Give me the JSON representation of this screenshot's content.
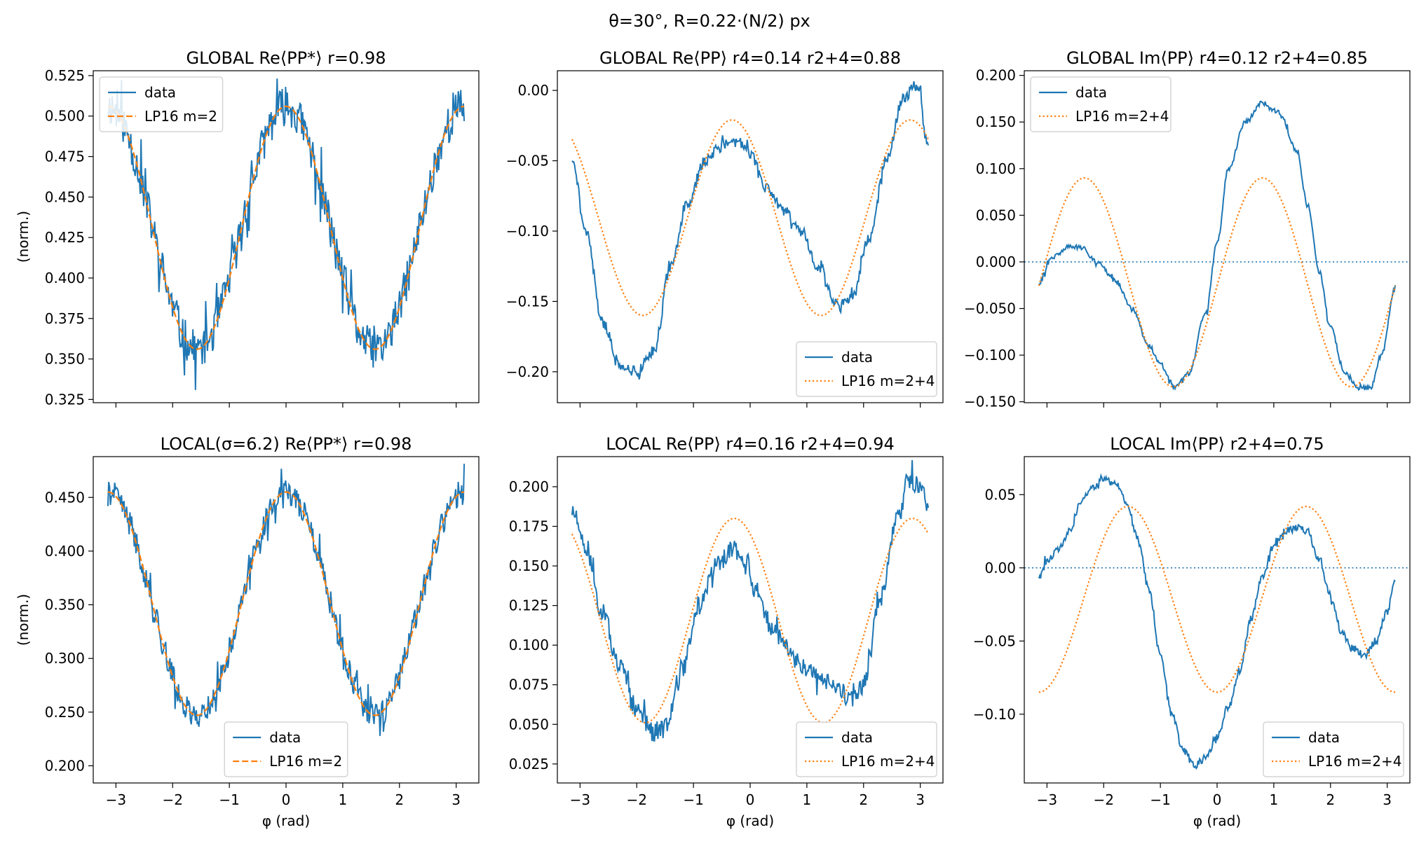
{
  "figure": {
    "suptitle": "θ=30°,  R=0.22·(N/2) px",
    "colors": {
      "data": "#1f77b4",
      "fit": "#ff7f0e"
    }
  },
  "chart_data": [
    {
      "id": "p00",
      "type": "line",
      "title": "GLOBAL Re⟨PP*⟩  r=0.98",
      "xlabel": "",
      "ylabel": "(norm.)",
      "xlim": [
        -3.4,
        3.4
      ],
      "ylim": [
        0.323,
        0.528
      ],
      "xticks": [],
      "yticks": [
        0.325,
        0.35,
        0.375,
        0.4,
        0.425,
        0.45,
        0.475,
        0.5,
        0.525
      ],
      "legend": {
        "position": "upper-left",
        "entries": [
          "data",
          "LP16 m=2"
        ]
      },
      "series": [
        {
          "name": "data",
          "kind": "data",
          "model": "cos2",
          "params": {
            "c": 0.431,
            "a2": 0.075,
            "p2": 0.0,
            "a4": 0,
            "p4": 0
          },
          "noise": 0.012,
          "seed": 11
        },
        {
          "name": "LP16 m=2",
          "kind": "fit",
          "style": "dashed",
          "model": "cos2",
          "params": {
            "c": 0.431,
            "a2": 0.075,
            "p2": 0.0,
            "a4": 0,
            "p4": 0
          }
        }
      ],
      "hline": null
    },
    {
      "id": "p01",
      "type": "line",
      "title": "GLOBAL Re⟨PP⟩  r4=0.14  r2+4=0.88",
      "xlabel": "",
      "ylabel": "",
      "xlim": [
        -3.4,
        3.4
      ],
      "ylim": [
        -0.222,
        0.014
      ],
      "xticks": [],
      "yticks": [
        -0.2,
        -0.15,
        -0.1,
        -0.05,
        0.0
      ],
      "legend": {
        "position": "lower-right",
        "entries": [
          "data",
          "LP16 m=2+4"
        ]
      },
      "series": [
        {
          "name": "data",
          "kind": "data",
          "points": [
            [
              -3.14,
              -0.048
            ],
            [
              -2.9,
              -0.1
            ],
            [
              -2.6,
              -0.165
            ],
            [
              -2.3,
              -0.195
            ],
            [
              -2.0,
              -0.2
            ],
            [
              -1.7,
              -0.185
            ],
            [
              -1.4,
              -0.125
            ],
            [
              -1.1,
              -0.08
            ],
            [
              -0.8,
              -0.05
            ],
            [
              -0.5,
              -0.04
            ],
            [
              -0.2,
              -0.036
            ],
            [
              0.0,
              -0.045
            ],
            [
              0.3,
              -0.07
            ],
            [
              0.6,
              -0.085
            ],
            [
              0.9,
              -0.1
            ],
            [
              1.2,
              -0.125
            ],
            [
              1.5,
              -0.15
            ],
            [
              1.8,
              -0.148
            ],
            [
              2.1,
              -0.105
            ],
            [
              2.4,
              -0.05
            ],
            [
              2.7,
              -0.005
            ],
            [
              2.95,
              0.004
            ],
            [
              3.14,
              -0.04
            ]
          ],
          "noise": 0.004,
          "seed": 21
        },
        {
          "name": "LP16 m=2+4",
          "kind": "fit",
          "style": "dotted",
          "model": "cos2",
          "params": {
            "c": -0.0905,
            "a2": 0.0695,
            "p2": -0.32,
            "a4": 0,
            "p4": 0
          }
        }
      ],
      "hline": null
    },
    {
      "id": "p02",
      "type": "line",
      "title": "GLOBAL Im⟨PP⟩  r4=0.12  r2+4=0.85",
      "xlabel": "",
      "ylabel": "",
      "xlim": [
        -3.4,
        3.4
      ],
      "ylim": [
        -0.151,
        0.205
      ],
      "xticks": [],
      "yticks": [
        -0.15,
        -0.1,
        -0.05,
        0.0,
        0.05,
        0.1,
        0.15,
        0.2
      ],
      "legend": {
        "position": "upper-left",
        "entries": [
          "data",
          "LP16 m=2+4"
        ]
      },
      "series": [
        {
          "name": "data",
          "kind": "data",
          "points": [
            [
              -3.14,
              -0.022
            ],
            [
              -2.9,
              0.005
            ],
            [
              -2.6,
              0.017
            ],
            [
              -2.4,
              0.015
            ],
            [
              -2.1,
              0.0
            ],
            [
              -1.8,
              -0.02
            ],
            [
              -1.5,
              -0.05
            ],
            [
              -1.2,
              -0.09
            ],
            [
              -1.0,
              -0.11
            ],
            [
              -0.75,
              -0.135
            ],
            [
              -0.5,
              -0.12
            ],
            [
              -0.2,
              -0.055
            ],
            [
              0.0,
              0.02
            ],
            [
              0.2,
              0.1
            ],
            [
              0.5,
              0.15
            ],
            [
              0.8,
              0.17
            ],
            [
              1.1,
              0.16
            ],
            [
              1.4,
              0.12
            ],
            [
              1.6,
              0.06
            ],
            [
              1.8,
              -0.01
            ],
            [
              2.0,
              -0.07
            ],
            [
              2.25,
              -0.12
            ],
            [
              2.5,
              -0.135
            ],
            [
              2.7,
              -0.135
            ],
            [
              2.9,
              -0.1
            ],
            [
              3.14,
              -0.028
            ]
          ],
          "noise": 0.0025,
          "seed": 31
        },
        {
          "name": "LP16 m=2+4",
          "kind": "fit",
          "style": "dotted",
          "model": "cos2",
          "params": {
            "c": -0.022,
            "a2": 0.112,
            "p2": -2.34,
            "a4": 0,
            "p4": 0
          }
        }
      ],
      "hline": 0.0
    },
    {
      "id": "p10",
      "type": "line",
      "title": "LOCAL(σ=6.2) Re⟨PP*⟩  r=0.98",
      "xlabel": "φ (rad)",
      "ylabel": "(norm.)",
      "xlim": [
        -3.4,
        3.4
      ],
      "ylim": [
        0.184,
        0.488
      ],
      "xticks": [
        -3,
        -2,
        -1,
        0,
        1,
        2,
        3
      ],
      "yticks": [
        0.2,
        0.25,
        0.3,
        0.35,
        0.4,
        0.45
      ],
      "legend": {
        "position": "lower-center",
        "entries": [
          "data",
          "LP16 m=2"
        ]
      },
      "series": [
        {
          "name": "data",
          "kind": "data",
          "model": "cos2",
          "params": {
            "c": 0.351,
            "a2": 0.104,
            "p2": 0.0,
            "a4": 0,
            "p4": 0
          },
          "noise": 0.012,
          "seed": 41
        },
        {
          "name": "LP16 m=2",
          "kind": "fit",
          "style": "dashed",
          "model": "cos2",
          "params": {
            "c": 0.351,
            "a2": 0.104,
            "p2": 0.0,
            "a4": 0,
            "p4": 0
          }
        }
      ],
      "hline": null
    },
    {
      "id": "p11",
      "type": "line",
      "title": "LOCAL Re⟨PP⟩  r4=0.16  r2+4=0.94",
      "xlabel": "φ (rad)",
      "ylabel": "",
      "xlim": [
        -3.4,
        3.4
      ],
      "ylim": [
        0.013,
        0.219
      ],
      "xticks": [
        -3,
        -2,
        -1,
        0,
        1,
        2,
        3
      ],
      "yticks": [
        0.025,
        0.05,
        0.075,
        0.1,
        0.125,
        0.15,
        0.175,
        0.2
      ],
      "legend": {
        "position": "lower-right",
        "entries": [
          "data",
          "LP16 m=2+4"
        ]
      },
      "series": [
        {
          "name": "data",
          "kind": "data",
          "points": [
            [
              -3.14,
              0.185
            ],
            [
              -2.9,
              0.16
            ],
            [
              -2.6,
              0.12
            ],
            [
              -2.3,
              0.085
            ],
            [
              -2.0,
              0.06
            ],
            [
              -1.7,
              0.045
            ],
            [
              -1.5,
              0.05
            ],
            [
              -1.2,
              0.085
            ],
            [
              -0.9,
              0.125
            ],
            [
              -0.6,
              0.15
            ],
            [
              -0.3,
              0.16
            ],
            [
              -0.1,
              0.155
            ],
            [
              0.1,
              0.135
            ],
            [
              0.4,
              0.11
            ],
            [
              0.7,
              0.095
            ],
            [
              1.0,
              0.085
            ],
            [
              1.3,
              0.078
            ],
            [
              1.6,
              0.07
            ],
            [
              1.8,
              0.065
            ],
            [
              2.0,
              0.075
            ],
            [
              2.3,
              0.13
            ],
            [
              2.6,
              0.18
            ],
            [
              2.8,
              0.205
            ],
            [
              3.0,
              0.2
            ],
            [
              3.14,
              0.19
            ]
          ],
          "noise": 0.006,
          "seed": 51
        },
        {
          "name": "LP16 m=2+4",
          "kind": "fit",
          "style": "dotted",
          "model": "cos2",
          "params": {
            "c": 0.1155,
            "a2": 0.0645,
            "p2": -0.28,
            "a4": 0,
            "p4": 0
          }
        }
      ],
      "hline": null
    },
    {
      "id": "p12",
      "type": "line",
      "title": "LOCAL Im⟨PP⟩  r2+4=0.75",
      "xlabel": "φ (rad)",
      "ylabel": "",
      "xlim": [
        -3.4,
        3.4
      ],
      "ylim": [
        -0.147,
        0.076
      ],
      "xticks": [
        -3,
        -2,
        -1,
        0,
        1,
        2,
        3
      ],
      "yticks": [
        -0.1,
        -0.05,
        0.0,
        0.05
      ],
      "legend": {
        "position": "lower-right",
        "entries": [
          "data",
          "LP16 m=2+4"
        ]
      },
      "series": [
        {
          "name": "data",
          "kind": "data",
          "points": [
            [
              -3.14,
              -0.006
            ],
            [
              -3.0,
              0.005
            ],
            [
              -2.8,
              0.012
            ],
            [
              -2.6,
              0.025
            ],
            [
              -2.4,
              0.045
            ],
            [
              -2.2,
              0.055
            ],
            [
              -2.0,
              0.06
            ],
            [
              -1.8,
              0.058
            ],
            [
              -1.6,
              0.045
            ],
            [
              -1.4,
              0.02
            ],
            [
              -1.2,
              -0.015
            ],
            [
              -1.0,
              -0.06
            ],
            [
              -0.8,
              -0.1
            ],
            [
              -0.6,
              -0.125
            ],
            [
              -0.4,
              -0.135
            ],
            [
              -0.2,
              -0.13
            ],
            [
              0.0,
              -0.115
            ],
            [
              0.2,
              -0.095
            ],
            [
              0.4,
              -0.07
            ],
            [
              0.6,
              -0.035
            ],
            [
              0.8,
              -0.005
            ],
            [
              1.0,
              0.015
            ],
            [
              1.2,
              0.025
            ],
            [
              1.4,
              0.028
            ],
            [
              1.6,
              0.025
            ],
            [
              1.8,
              0.005
            ],
            [
              2.0,
              -0.02
            ],
            [
              2.2,
              -0.045
            ],
            [
              2.4,
              -0.055
            ],
            [
              2.6,
              -0.06
            ],
            [
              2.8,
              -0.05
            ],
            [
              3.0,
              -0.03
            ],
            [
              3.14,
              -0.009
            ]
          ],
          "noise": 0.0025,
          "seed": 61
        },
        {
          "name": "LP16 m=2+4",
          "kind": "fit",
          "style": "dotted",
          "model": "cos2",
          "params": {
            "c": -0.0215,
            "a2": 0.0635,
            "p2": 1.57,
            "a4": 0,
            "p4": 0
          }
        }
      ],
      "hline": 0.0
    }
  ]
}
